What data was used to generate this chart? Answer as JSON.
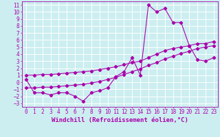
{
  "xlabel": "Windchill (Refroidissement éolien,°C)",
  "xlim": [
    -0.5,
    23.5
  ],
  "ylim": [
    -3.5,
    11.5
  ],
  "xticks": [
    0,
    1,
    2,
    3,
    4,
    5,
    6,
    7,
    8,
    9,
    10,
    11,
    12,
    13,
    14,
    15,
    16,
    17,
    18,
    19,
    20,
    21,
    22,
    23
  ],
  "yticks": [
    -3,
    -2,
    -1,
    0,
    1,
    2,
    3,
    4,
    5,
    6,
    7,
    8,
    9,
    10,
    11
  ],
  "bg_color": "#cceef0",
  "line_color": "#aa00aa",
  "grid_color": "#ffffff",
  "line1_x": [
    0,
    1,
    2,
    3,
    4,
    5,
    6,
    7,
    8,
    9,
    10,
    11,
    12,
    13,
    14,
    15,
    16,
    17,
    18,
    19,
    20,
    21,
    22,
    23
  ],
  "line1_y": [
    0.4,
    -1.5,
    -1.5,
    -1.8,
    -1.5,
    -1.5,
    -2.0,
    -2.7,
    -1.5,
    -1.2,
    -0.8,
    0.8,
    1.5,
    3.5,
    1.0,
    11.0,
    10.0,
    10.5,
    8.5,
    8.5,
    5.2,
    3.2,
    3.0,
    3.5
  ],
  "line2_x": [
    0,
    1,
    2,
    3,
    4,
    5,
    6,
    7,
    8,
    9,
    10,
    11,
    12,
    13,
    14,
    15,
    16,
    17,
    18,
    19,
    20,
    21,
    22,
    23
  ],
  "line2_y": [
    1.0,
    1.0,
    1.1,
    1.1,
    1.2,
    1.3,
    1.4,
    1.5,
    1.6,
    1.8,
    2.0,
    2.2,
    2.5,
    2.8,
    3.0,
    3.5,
    4.0,
    4.5,
    4.8,
    5.0,
    5.2,
    5.5,
    5.5,
    5.8
  ],
  "line3_x": [
    0,
    1,
    2,
    3,
    4,
    5,
    6,
    7,
    8,
    9,
    10,
    11,
    12,
    13,
    14,
    15,
    16,
    17,
    18,
    19,
    20,
    21,
    22,
    23
  ],
  "line3_y": [
    -0.8,
    -0.8,
    -0.7,
    -0.7,
    -0.6,
    -0.5,
    -0.4,
    -0.3,
    -0.1,
    0.1,
    0.4,
    0.7,
    1.1,
    1.5,
    1.9,
    2.4,
    2.8,
    3.3,
    3.7,
    4.1,
    4.4,
    4.8,
    5.0,
    5.2
  ],
  "font_family": "monospace",
  "tick_fontsize": 5.5,
  "xlabel_fontsize": 6.5
}
